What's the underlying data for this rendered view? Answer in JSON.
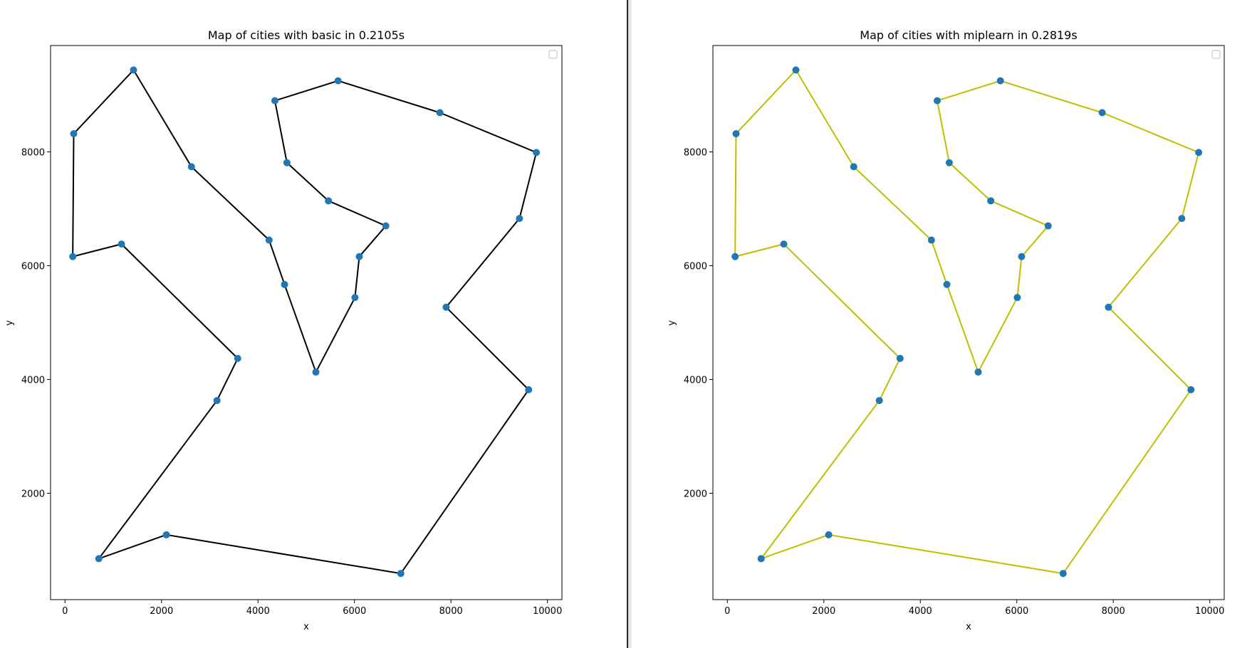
{
  "chart_data": [
    {
      "type": "line",
      "title": "Map of cities with basic in 0.2105s",
      "xlabel": "x",
      "ylabel": "y",
      "xlim": [
        -300,
        10300
      ],
      "ylim": [
        130,
        9870
      ],
      "xticks": [
        "0",
        "2000",
        "4000",
        "6000",
        "8000",
        "10000"
      ],
      "yticks": [
        "2000",
        "4000",
        "6000",
        "8000"
      ],
      "line_color": "#000000",
      "marker_color": "#1f77b4",
      "legend": "top-right",
      "grid": false,
      "route": [
        [
          1420,
          9440
        ],
        [
          180,
          8320
        ],
        [
          160,
          6160
        ],
        [
          1170,
          6380
        ],
        [
          3580,
          4370
        ],
        [
          3150,
          3630
        ],
        [
          700,
          850
        ],
        [
          2100,
          1270
        ],
        [
          6960,
          590
        ],
        [
          9610,
          3820
        ],
        [
          7900,
          5270
        ],
        [
          9420,
          6830
        ],
        [
          9770,
          7990
        ],
        [
          7770,
          8690
        ],
        [
          5660,
          9250
        ],
        [
          4350,
          8900
        ],
        [
          4600,
          7810
        ],
        [
          5460,
          7140
        ],
        [
          6650,
          6700
        ],
        [
          6100,
          6160
        ],
        [
          6010,
          5440
        ],
        [
          5200,
          4130
        ],
        [
          4550,
          5670
        ],
        [
          4230,
          6450
        ],
        [
          2620,
          7740
        ],
        [
          1420,
          9440
        ]
      ],
      "cities": [
        [
          1420,
          9440
        ],
        [
          180,
          8320
        ],
        [
          160,
          6160
        ],
        [
          1170,
          6380
        ],
        [
          3580,
          4370
        ],
        [
          3150,
          3630
        ],
        [
          700,
          850
        ],
        [
          2100,
          1270
        ],
        [
          6960,
          590
        ],
        [
          9610,
          3820
        ],
        [
          7900,
          5270
        ],
        [
          9420,
          6830
        ],
        [
          9770,
          7990
        ],
        [
          7770,
          8690
        ],
        [
          5660,
          9250
        ],
        [
          4350,
          8900
        ],
        [
          4600,
          7810
        ],
        [
          5460,
          7140
        ],
        [
          6650,
          6700
        ],
        [
          6100,
          6160
        ],
        [
          6010,
          5440
        ],
        [
          5200,
          4130
        ],
        [
          4550,
          5670
        ],
        [
          4230,
          6450
        ],
        [
          2620,
          7740
        ]
      ]
    },
    {
      "type": "line",
      "title": "Map of cities with miplearn in 0.2819s",
      "xlabel": "x",
      "ylabel": "y",
      "xlim": [
        -300,
        10300
      ],
      "ylim": [
        130,
        9870
      ],
      "xticks": [
        "0",
        "2000",
        "4000",
        "6000",
        "8000",
        "10000"
      ],
      "yticks": [
        "2000",
        "4000",
        "6000",
        "8000"
      ],
      "line_color": "#bfbf00",
      "marker_color": "#1f77b4",
      "legend": "top-right",
      "grid": false,
      "route": [
        [
          1420,
          9440
        ],
        [
          180,
          8320
        ],
        [
          160,
          6160
        ],
        [
          1170,
          6380
        ],
        [
          3580,
          4370
        ],
        [
          3150,
          3630
        ],
        [
          700,
          850
        ],
        [
          2100,
          1270
        ],
        [
          6960,
          590
        ],
        [
          9610,
          3820
        ],
        [
          7900,
          5270
        ],
        [
          9420,
          6830
        ],
        [
          9770,
          7990
        ],
        [
          7770,
          8690
        ],
        [
          5660,
          9250
        ],
        [
          4350,
          8900
        ],
        [
          4600,
          7810
        ],
        [
          5460,
          7140
        ],
        [
          6650,
          6700
        ],
        [
          6100,
          6160
        ],
        [
          6010,
          5440
        ],
        [
          5200,
          4130
        ],
        [
          4550,
          5670
        ],
        [
          4230,
          6450
        ],
        [
          2620,
          7740
        ],
        [
          1420,
          9440
        ]
      ],
      "cities": [
        [
          1420,
          9440
        ],
        [
          180,
          8320
        ],
        [
          160,
          6160
        ],
        [
          1170,
          6380
        ],
        [
          3580,
          4370
        ],
        [
          3150,
          3630
        ],
        [
          700,
          850
        ],
        [
          2100,
          1270
        ],
        [
          6960,
          590
        ],
        [
          9610,
          3820
        ],
        [
          7900,
          5270
        ],
        [
          9420,
          6830
        ],
        [
          9770,
          7990
        ],
        [
          7770,
          8690
        ],
        [
          5660,
          9250
        ],
        [
          4350,
          8900
        ],
        [
          4600,
          7810
        ],
        [
          5460,
          7140
        ],
        [
          6650,
          6700
        ],
        [
          6100,
          6160
        ],
        [
          6010,
          5440
        ],
        [
          5200,
          4130
        ],
        [
          4550,
          5670
        ],
        [
          4230,
          6450
        ],
        [
          2620,
          7740
        ]
      ]
    }
  ]
}
